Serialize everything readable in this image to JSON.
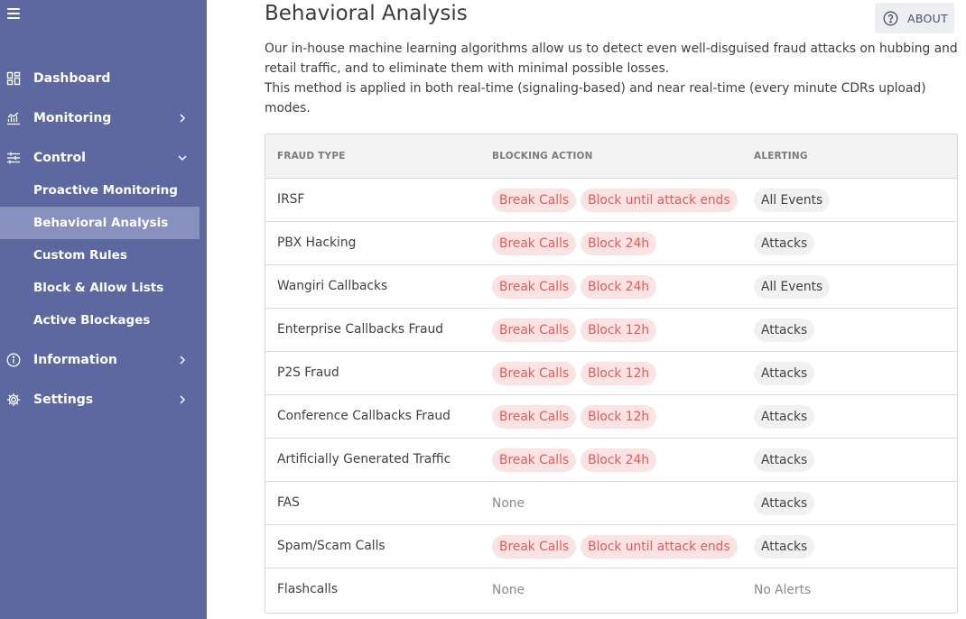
{
  "sidebar": {
    "items": [
      {
        "label": "Dashboard",
        "icon": "dashboard-icon"
      },
      {
        "label": "Monitoring",
        "icon": "monitoring-icon"
      },
      {
        "label": "Control",
        "icon": "control-icon"
      },
      {
        "label": "Information",
        "icon": "info-icon"
      },
      {
        "label": "Settings",
        "icon": "gear-icon"
      }
    ],
    "control_sub": [
      {
        "label": "Proactive Monitoring"
      },
      {
        "label": "Behavioral Analysis"
      },
      {
        "label": "Custom Rules"
      },
      {
        "label": "Block & Allow Lists"
      },
      {
        "label": "Active Blockages"
      }
    ]
  },
  "header": {
    "title": "Behavioral Analysis",
    "about_label": "ABOUT",
    "description_1": "Our in-house machine learning algorithms allow us to detect even well-disguised fraud attacks on hubbing and retail traffic, and to eliminate them with minimal possible losses.",
    "description_2": "This method is applied in both real-time (signaling-based) and near real-time (every minute CDRs upload) modes."
  },
  "table": {
    "columns": [
      "FRAUD TYPE",
      "BLOCKING ACTION",
      "ALERTING"
    ],
    "rows": [
      {
        "type": "IRSF",
        "actions": [
          "Break Calls",
          "Block until attack ends"
        ],
        "alerting": "All Events"
      },
      {
        "type": "PBX Hacking",
        "actions": [
          "Break Calls",
          "Block 24h"
        ],
        "alerting": "Attacks"
      },
      {
        "type": "Wangiri Callbacks",
        "actions": [
          "Break Calls",
          "Block 24h"
        ],
        "alerting": "All Events"
      },
      {
        "type": "Enterprise Callbacks Fraud",
        "actions": [
          "Break Calls",
          "Block 12h"
        ],
        "alerting": "Attacks"
      },
      {
        "type": "P2S Fraud",
        "actions": [
          "Break Calls",
          "Block 12h"
        ],
        "alerting": "Attacks"
      },
      {
        "type": "Conference Callbacks Fraud",
        "actions": [
          "Break Calls",
          "Block 12h"
        ],
        "alerting": "Attacks"
      },
      {
        "type": "Artificially Generated Traffic",
        "actions": [
          "Break Calls",
          "Block 24h"
        ],
        "alerting": "Attacks"
      },
      {
        "type": "FAS",
        "actions_none": "None",
        "alerting": "Attacks"
      },
      {
        "type": "Spam/Scam Calls",
        "actions": [
          "Break Calls",
          "Block until attack ends"
        ],
        "alerting": "Attacks"
      },
      {
        "type": "Flashcalls",
        "actions_none": "None",
        "alerting_none": "No Alerts"
      }
    ]
  },
  "colors": {
    "sidebar_bg": "#5e68a0",
    "active_item_bg": "#8890bd",
    "action_chip_bg": "#fbe3e3",
    "action_chip_text": "#e05a5a",
    "alert_chip_bg": "#f1f1f2"
  }
}
